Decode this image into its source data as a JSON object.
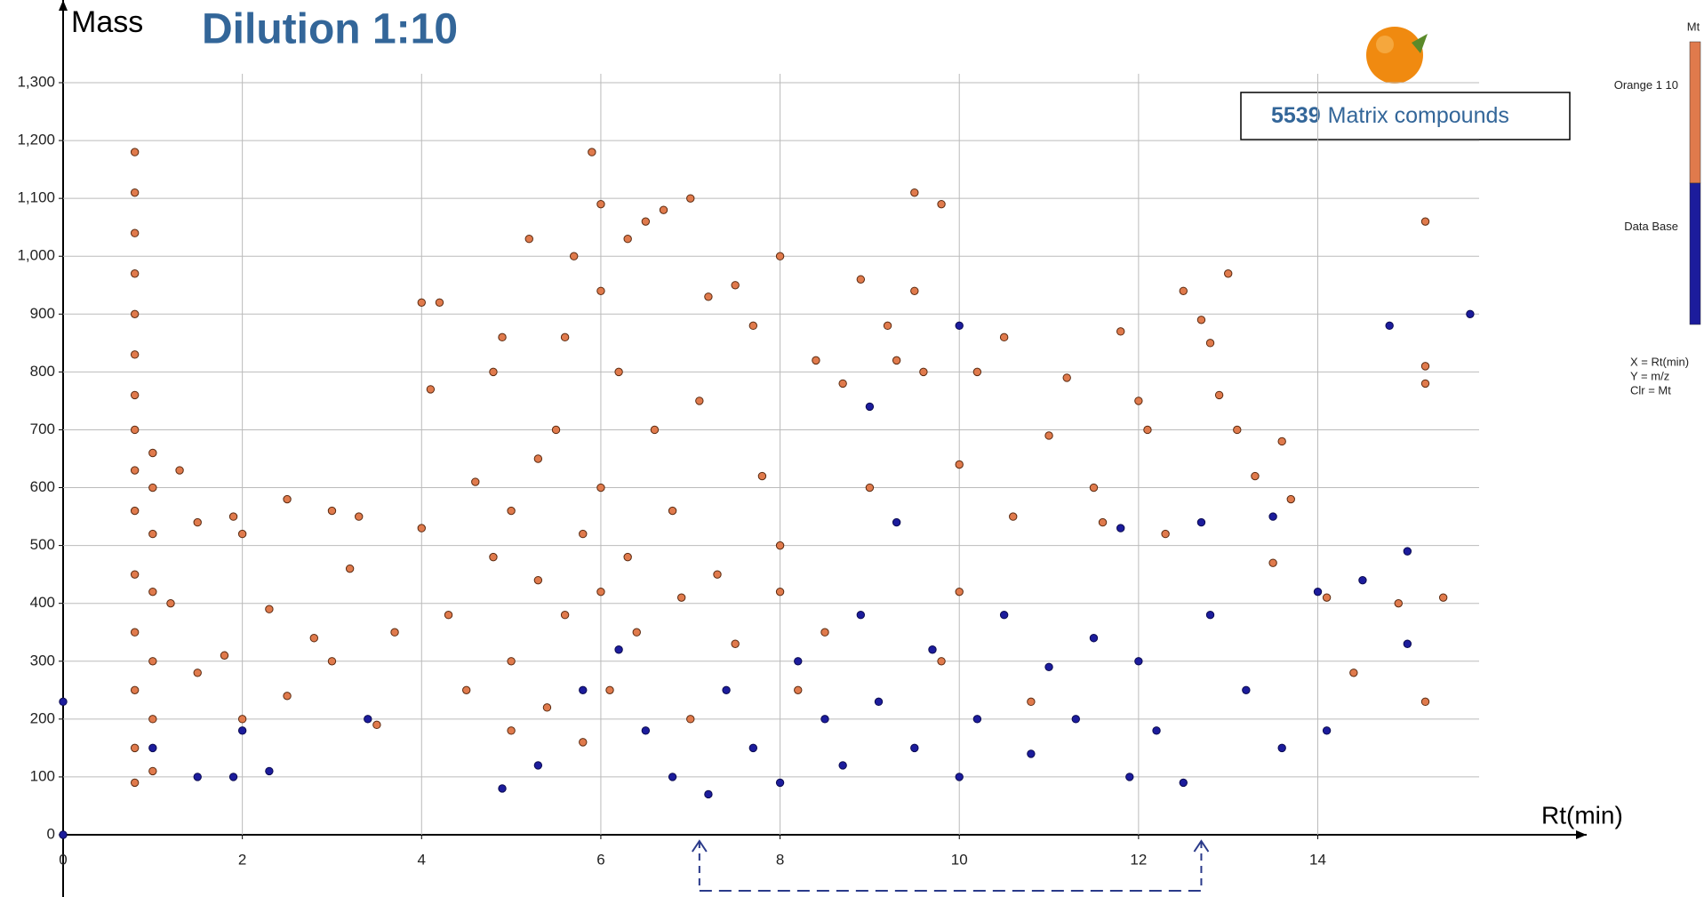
{
  "chart_data": {
    "type": "scatter",
    "title": "Dilution 1:10",
    "y_label": "Mass",
    "x_label": "Rt(min)",
    "annotation": {
      "count": "5539",
      "text": "Matrix compounds"
    },
    "colorbar_title": "Mt",
    "notes": [
      "X =  Rt(min)",
      "Y = m/z",
      "Clr = Mt"
    ],
    "highlight_range": [
      7.1,
      12.7
    ],
    "xlim": [
      0,
      15.8
    ],
    "ylim": [
      0,
      1300
    ],
    "xticks": [
      0,
      2,
      4,
      6,
      8,
      10,
      12,
      14
    ],
    "yticks": [
      0,
      100,
      200,
      300,
      400,
      500,
      600,
      700,
      800,
      900,
      {
        "value": 1000,
        "label": "1,000"
      },
      {
        "value": 1100,
        "label": "1,100"
      },
      {
        "value": 1200,
        "label": "1,200"
      },
      {
        "value": 1300,
        "label": "1,300"
      }
    ],
    "grid": true,
    "series": [
      {
        "name": "Orange 1 10",
        "color": "#e07a4c",
        "x": [
          0.8,
          0.8,
          0.8,
          0.8,
          0.8,
          0.8,
          0.8,
          0.8,
          0.8,
          0.8,
          0.8,
          0.8,
          0.8,
          0.8,
          0.8,
          1.0,
          1.0,
          1.0,
          1.0,
          1.0,
          1.0,
          1.0,
          1.3,
          1.2,
          1.5,
          1.5,
          1.8,
          1.9,
          2.0,
          2.0,
          2.3,
          2.5,
          2.5,
          2.8,
          3.0,
          3.0,
          3.2,
          3.3,
          3.5,
          3.7,
          4.0,
          4.2,
          4.1,
          4.0,
          4.3,
          4.5,
          4.6,
          4.8,
          4.8,
          4.9,
          5.0,
          5.0,
          5.0,
          5.2,
          5.3,
          5.3,
          5.4,
          5.5,
          5.6,
          5.6,
          5.7,
          5.8,
          5.8,
          5.9,
          6.0,
          6.0,
          6.0,
          6.0,
          6.1,
          6.2,
          6.3,
          6.3,
          6.4,
          6.5,
          6.6,
          6.7,
          6.8,
          6.9,
          7.0,
          7.0,
          7.1,
          7.2,
          7.3,
          7.5,
          7.5,
          7.7,
          7.8,
          8.0,
          8.0,
          8.0,
          8.2,
          8.4,
          8.5,
          8.7,
          8.9,
          9.0,
          9.2,
          9.3,
          9.5,
          9.5,
          9.6,
          9.8,
          9.8,
          10.0,
          10.0,
          10.2,
          10.5,
          10.6,
          10.8,
          11.0,
          11.2,
          11.5,
          11.6,
          11.8,
          12.0,
          12.1,
          12.3,
          12.5,
          12.7,
          12.8,
          12.9,
          13.0,
          13.1,
          13.3,
          13.5,
          13.6,
          13.7,
          14.1,
          14.4,
          15.2,
          15.2,
          15.2,
          15.2,
          15.4,
          14.9
        ],
        "values": [
          1180,
          1110,
          1040,
          970,
          900,
          830,
          760,
          700,
          630,
          560,
          450,
          350,
          250,
          150,
          90,
          660,
          600,
          520,
          420,
          300,
          200,
          110,
          630,
          400,
          540,
          280,
          310,
          550,
          520,
          200,
          390,
          580,
          240,
          340,
          560,
          300,
          460,
          550,
          190,
          350,
          920,
          920,
          770,
          530,
          380,
          250,
          610,
          800,
          480,
          860,
          560,
          300,
          180,
          1030,
          650,
          440,
          220,
          700,
          860,
          380,
          1000,
          520,
          160,
          1180,
          1090,
          940,
          600,
          420,
          250,
          800,
          1030,
          480,
          350,
          1060,
          700,
          1080,
          560,
          410,
          1100,
          200,
          750,
          930,
          450,
          950,
          330,
          880,
          620,
          1000,
          500,
          420,
          250,
          820,
          350,
          780,
          960,
          600,
          880,
          820,
          1110,
          940,
          800,
          1090,
          300,
          640,
          420,
          800,
          860,
          550,
          230,
          690,
          790,
          600,
          540,
          870,
          750,
          700,
          520,
          940,
          890,
          850,
          760,
          970,
          700,
          620,
          470,
          680,
          580,
          410,
          280,
          1060,
          810,
          780,
          230,
          410,
          400
        ]
      },
      {
        "name": "Data Base",
        "color": "#1c1c9c",
        "x": [
          0.0,
          0.0,
          1.0,
          1.5,
          1.9,
          2.0,
          2.3,
          3.4,
          4.9,
          5.3,
          5.8,
          6.2,
          6.5,
          6.8,
          7.2,
          7.4,
          7.7,
          8.0,
          8.2,
          8.5,
          8.7,
          8.9,
          9.0,
          9.1,
          9.3,
          9.5,
          9.7,
          10.0,
          10.0,
          10.2,
          10.5,
          10.8,
          11.0,
          11.3,
          11.5,
          11.8,
          11.9,
          12.0,
          12.2,
          12.5,
          12.7,
          12.8,
          13.2,
          13.5,
          13.6,
          14.0,
          14.1,
          14.5,
          14.8,
          15.0,
          15.0,
          15.7
        ],
        "values": [
          230,
          0,
          150,
          100,
          100,
          180,
          110,
          200,
          80,
          120,
          250,
          320,
          180,
          100,
          70,
          250,
          150,
          90,
          300,
          200,
          120,
          380,
          740,
          230,
          540,
          150,
          320,
          880,
          100,
          200,
          380,
          140,
          290,
          200,
          340,
          530,
          100,
          300,
          180,
          90,
          540,
          380,
          250,
          550,
          150,
          420,
          180,
          440,
          880,
          490,
          330,
          900
        ]
      }
    ]
  }
}
